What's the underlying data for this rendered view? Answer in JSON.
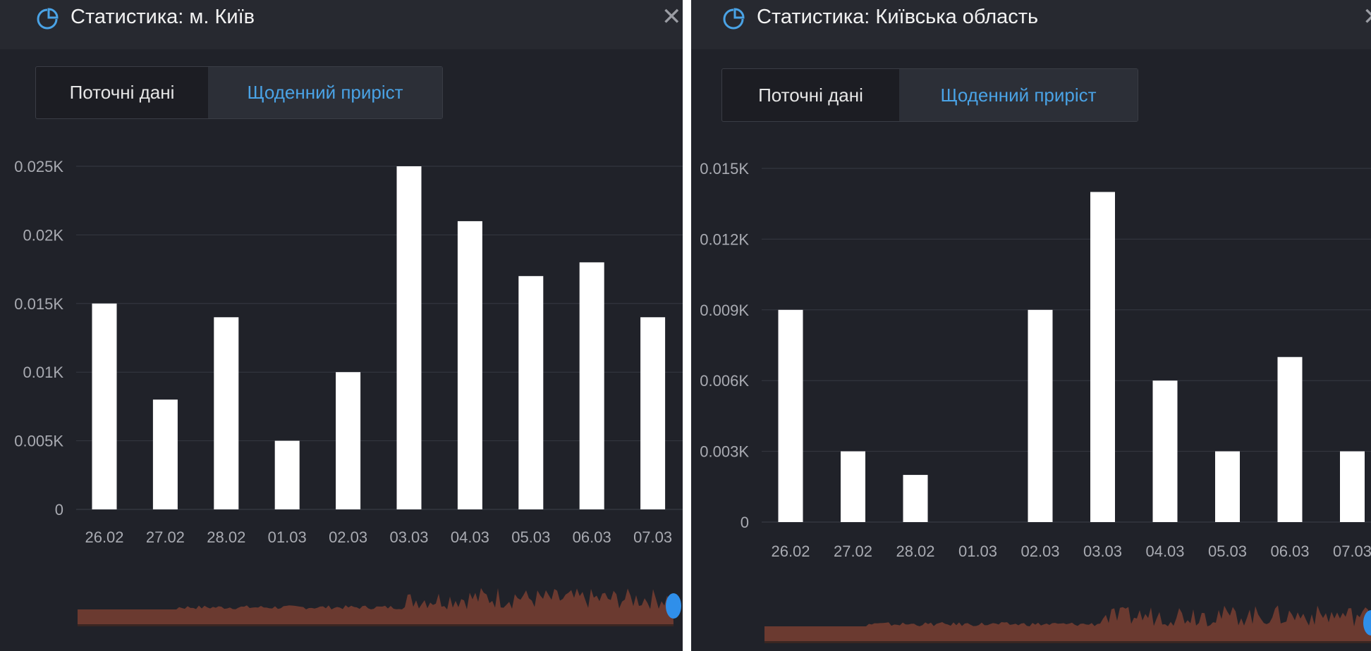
{
  "panels": [
    {
      "title": "Статистика: м. Київ",
      "icon": "pie-chart-icon",
      "close_label": "✕",
      "tabs": [
        {
          "label": "Поточні дані",
          "active": false
        },
        {
          "label": "Щоденний приріст",
          "active": true
        }
      ],
      "chart_data": {
        "type": "bar",
        "categories": [
          "26.02",
          "27.02",
          "28.02",
          "01.03",
          "02.03",
          "03.03",
          "04.03",
          "05.03",
          "06.03",
          "07.03"
        ],
        "values": [
          0.015,
          0.008,
          0.014,
          0.005,
          0.01,
          0.025,
          0.021,
          0.017,
          0.018,
          0.014
        ],
        "yticks": [
          {
            "v": 0,
            "label": "0"
          },
          {
            "v": 0.005,
            "label": "0.005K"
          },
          {
            "v": 0.01,
            "label": "0.01K"
          },
          {
            "v": 0.015,
            "label": "0.015K"
          },
          {
            "v": 0.02,
            "label": "0.02K"
          },
          {
            "v": 0.025,
            "label": "0.025K"
          }
        ],
        "ylim": [
          0,
          0.025
        ],
        "grid": true,
        "bar_color": "#ffffff",
        "navigator_color": "#6b3a30"
      }
    },
    {
      "title": "Статистика: Київська область",
      "icon": "pie-chart-icon",
      "close_label": "✕",
      "tabs": [
        {
          "label": "Поточні дані",
          "active": false
        },
        {
          "label": "Щоденний приріст",
          "active": true
        }
      ],
      "chart_data": {
        "type": "bar",
        "categories": [
          "26.02",
          "27.02",
          "28.02",
          "01.03",
          "02.03",
          "03.03",
          "04.03",
          "05.03",
          "06.03",
          "07.03"
        ],
        "values": [
          0.009,
          0.003,
          0.002,
          0,
          0.009,
          0.014,
          0.006,
          0.003,
          0.007,
          0.003
        ],
        "yticks": [
          {
            "v": 0,
            "label": "0"
          },
          {
            "v": 0.003,
            "label": "0.003K"
          },
          {
            "v": 0.006,
            "label": "0.006K"
          },
          {
            "v": 0.009,
            "label": "0.009K"
          },
          {
            "v": 0.012,
            "label": "0.012K"
          },
          {
            "v": 0.015,
            "label": "0.015K"
          }
        ],
        "ylim": [
          0,
          0.015
        ],
        "grid": true,
        "bar_color": "#ffffff",
        "navigator_color": "#6b3a30"
      }
    }
  ],
  "colors": {
    "accent": "#4aa3e6",
    "background": "#202229"
  }
}
